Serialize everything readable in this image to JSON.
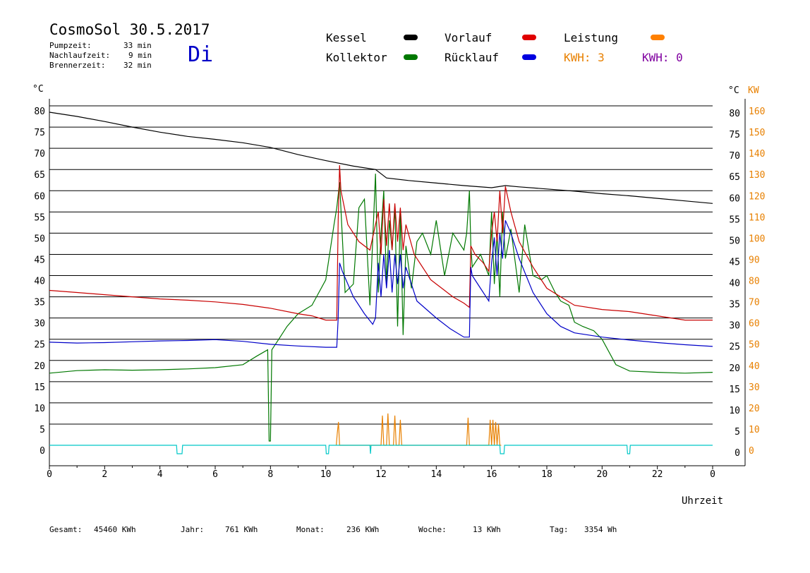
{
  "header": {
    "title": "CosmoSol 30.5.2017",
    "day": "Di",
    "stats": [
      {
        "label": "Pumpzeit:",
        "value": "33 min"
      },
      {
        "label": "Nachlaufzeit:",
        "value": "9 min"
      },
      {
        "label": "Brennerzeit:",
        "value": "32 min"
      }
    ]
  },
  "legend": {
    "kessel": "Kessel",
    "kollektor": "Kollektor",
    "vorlauf": "Vorlauf",
    "ruecklauf": "Rücklauf",
    "leistung": "Leistung",
    "kwh_orange": "KWH: 3",
    "kwh_purple": "KWH: 0"
  },
  "colors": {
    "kessel": "#000000",
    "kollektor": "#007800",
    "vorlauf": "#c80000",
    "ruecklauf": "#0000c8",
    "leistung": "#e88000",
    "pumpe": "#00c8c8",
    "purple": "#8000a0",
    "grid": "#000000"
  },
  "footer": [
    {
      "label": "Gesamt:",
      "value": "45460 KWh"
    },
    {
      "label": "Jahr:",
      "value": "761 KWh"
    },
    {
      "label": "Monat:",
      "value": "236 KWh"
    },
    {
      "label": "Woche:",
      "value": "13 KWh"
    },
    {
      "label": "Tag:",
      "value": "3354 Wh"
    }
  ],
  "chart_data": {
    "type": "line",
    "xlabel": "Uhrzeit",
    "ylabel_left": "°C",
    "ylabel_right": "°C",
    "ylabel_right2": "KW",
    "xlim": [
      0,
      24
    ],
    "ylim": [
      0,
      80
    ],
    "y2lim": [
      0,
      160
    ],
    "x_ticks": [
      "0",
      "2",
      "4",
      "6",
      "8",
      "10",
      "12",
      "14",
      "16",
      "18",
      "20",
      "22",
      "0"
    ],
    "y_ticks": [
      "0",
      "5",
      "10",
      "15",
      "20",
      "25",
      "30",
      "35",
      "40",
      "45",
      "50",
      "55",
      "60",
      "65",
      "70",
      "75",
      "80"
    ],
    "y2_ticks": [
      "0",
      "10",
      "20",
      "30",
      "40",
      "50",
      "60",
      "70",
      "80",
      "90",
      "100",
      "110",
      "120",
      "130",
      "140",
      "150",
      "160"
    ],
    "grid": true,
    "series": [
      {
        "name": "Kessel",
        "key": "kessel",
        "x": [
          0,
          1,
          2,
          3,
          4,
          5,
          6,
          7,
          8,
          9,
          10,
          11,
          11.8,
          12.2,
          13,
          14,
          15,
          16,
          16.5,
          17,
          18,
          19,
          20,
          21,
          22,
          23,
          24
        ],
        "y": [
          78.5,
          77.5,
          76.3,
          75,
          73.8,
          72.8,
          72.1,
          71.3,
          70.2,
          68.5,
          67.1,
          65.8,
          65,
          63,
          62.4,
          61.8,
          61.2,
          60.7,
          61.2,
          60.9,
          60.4,
          59.9,
          59.3,
          58.8,
          58.2,
          57.6,
          57
        ]
      },
      {
        "name": "Kollektor",
        "key": "kollektor",
        "x": [
          0,
          1,
          2,
          3,
          4,
          5,
          6,
          7,
          7.5,
          7.9,
          7.95,
          8.0,
          8.05,
          8.1,
          8.3,
          8.6,
          9,
          9.5,
          10,
          10.3,
          10.4,
          10.5,
          10.7,
          11,
          11.2,
          11.4,
          11.6,
          11.8,
          11.9,
          12.0,
          12.1,
          12.2,
          12.3,
          12.4,
          12.5,
          12.6,
          12.7,
          12.8,
          12.9,
          13.1,
          13.3,
          13.5,
          13.8,
          14,
          14.3,
          14.6,
          15,
          15.1,
          15.2,
          15.25,
          15.3,
          15.6,
          15.9,
          16.0,
          16.1,
          16.2,
          16.3,
          16.4,
          16.5,
          16.7,
          17,
          17.2,
          17.5,
          17.8,
          18,
          18.3,
          18.5,
          18.8,
          19,
          19.3,
          19.7,
          20,
          20.5,
          21,
          22,
          23,
          24
        ],
        "y": [
          17,
          17.6,
          17.8,
          17.7,
          17.8,
          18,
          18.3,
          19,
          21,
          22.5,
          1,
          1,
          22.5,
          23,
          25,
          28,
          31,
          33,
          39,
          52,
          56,
          62,
          36,
          38,
          56,
          58,
          33,
          64,
          36,
          50,
          60,
          38,
          53,
          46,
          56,
          28,
          55,
          26,
          47,
          37,
          48,
          50,
          45,
          53,
          40,
          50,
          46,
          50,
          60,
          47,
          42,
          45,
          40,
          55,
          38,
          50,
          35,
          55,
          44,
          51,
          36,
          52,
          40,
          39,
          40,
          36,
          34,
          33,
          29,
          28,
          27,
          25,
          19,
          17.5,
          17.2,
          17,
          17.2
        ]
      },
      {
        "name": "Vorlauf",
        "key": "vorlauf",
        "x": [
          0,
          1,
          2,
          3,
          4,
          5,
          6,
          7,
          8,
          9,
          9.5,
          10,
          10.4,
          10.45,
          10.5,
          10.55,
          10.8,
          11.2,
          11.6,
          11.9,
          12.0,
          12.1,
          12.2,
          12.3,
          12.4,
          12.5,
          12.6,
          12.7,
          12.8,
          12.9,
          13.2,
          13.5,
          13.8,
          14,
          14.3,
          14.6,
          15,
          15.2,
          15.25,
          15.4,
          15.7,
          15.9,
          16.0,
          16.1,
          16.2,
          16.3,
          16.4,
          16.5,
          16.7,
          17,
          17.5,
          18,
          18.5,
          19,
          20,
          21,
          22,
          23,
          24
        ],
        "y": [
          36.5,
          36,
          35.5,
          35,
          34.5,
          34.2,
          33.8,
          33.2,
          32.3,
          31,
          30.5,
          29.5,
          29.5,
          53,
          66,
          60,
          52,
          48,
          46,
          55,
          45,
          58,
          47,
          57,
          46,
          57,
          48,
          56,
          46,
          52,
          45,
          42,
          39,
          38,
          36.5,
          35,
          33.5,
          32.5,
          47,
          45,
          43,
          41,
          50,
          55,
          48,
          60,
          50,
          61,
          55,
          48,
          42,
          37,
          35,
          33,
          32,
          31.5,
          30.5,
          29.5,
          29.5
        ]
      },
      {
        "name": "Rücklauf",
        "key": "ruecklauf",
        "x": [
          0,
          1,
          2,
          3,
          4,
          5,
          6,
          7,
          8,
          9,
          10,
          10.4,
          10.45,
          10.5,
          10.6,
          11,
          11.4,
          11.7,
          11.8,
          11.9,
          12.0,
          12.1,
          12.2,
          12.3,
          12.4,
          12.5,
          12.6,
          12.7,
          12.8,
          12.9,
          13.3,
          14,
          14.5,
          15,
          15.2,
          15.25,
          15.3,
          15.6,
          15.9,
          16.0,
          16.1,
          16.2,
          16.3,
          16.4,
          16.5,
          16.7,
          17,
          17.5,
          18,
          18.5,
          19,
          20,
          21,
          22,
          23,
          24
        ],
        "y": [
          24.3,
          24.1,
          24.2,
          24.4,
          24.6,
          24.7,
          24.9,
          24.5,
          23.8,
          23.4,
          23.1,
          23.1,
          30,
          43,
          41,
          35,
          31,
          28.5,
          30,
          43,
          35,
          45,
          37,
          46,
          36,
          45,
          38,
          45,
          37,
          42,
          34,
          30,
          27.5,
          25.5,
          25.5,
          42,
          40,
          37,
          34,
          43,
          49,
          40,
          50,
          44,
          53,
          50,
          44,
          36,
          31,
          28,
          26.5,
          25.5,
          24.8,
          24.2,
          23.7,
          23.3
        ]
      },
      {
        "name": "Leistung",
        "key": "leistung",
        "x": [
          10.38,
          10.42,
          10.46,
          10.5,
          12.0,
          12.05,
          12.1,
          12.2,
          12.25,
          12.3,
          12.45,
          12.5,
          12.55,
          12.65,
          12.7,
          12.75,
          15.1,
          15.15,
          15.2,
          15.9,
          15.95,
          16.0,
          16.05,
          16.1,
          16.15,
          16.2,
          16.25,
          16.3,
          16.35
        ],
        "y": [
          0,
          3,
          5.5,
          0,
          0,
          7,
          0,
          0,
          7.5,
          0,
          0,
          7,
          0,
          0,
          6,
          0,
          0,
          6.5,
          0,
          0,
          6,
          0,
          6,
          0,
          5.5,
          0,
          5,
          0,
          0
        ]
      },
      {
        "name": "Pumpe",
        "key": "pumpe",
        "x": [
          0,
          4.6,
          4.62,
          4.8,
          4.82,
          10.0,
          10.02,
          10.1,
          10.12,
          11.6,
          11.62,
          11.64,
          16.3,
          16.32,
          16.45,
          16.47,
          20.9,
          20.92,
          21.0,
          21.02,
          24
        ],
        "y": [
          0,
          0,
          -2,
          -2,
          0,
          0,
          -2,
          -2,
          0,
          0,
          -2,
          0,
          0,
          -2,
          -2,
          0,
          0,
          -2,
          -2,
          0,
          0
        ]
      }
    ]
  }
}
